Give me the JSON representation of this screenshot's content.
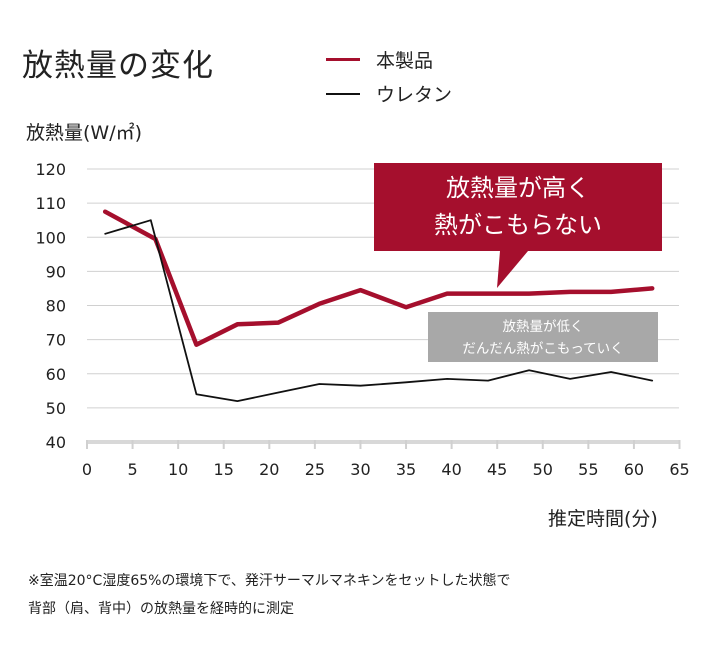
{
  "title": "放熱量の変化",
  "legend": [
    {
      "label": "本製品",
      "color": "#a50f2d"
    },
    {
      "label": "ウレタン",
      "color": "#111111"
    }
  ],
  "callouts": {
    "product": {
      "line1": "放熱量が高く",
      "line2": "熱がこもらない",
      "color": "#a50f2d"
    },
    "urethane": {
      "line1": "放熱量が低く",
      "line2": "だんだん熱がこもっていく",
      "color": "#a8a8a8"
    }
  },
  "notes": {
    "line1": "※室温20°C湿度65%の環境下で、発汗サーマルマネキンをセットした状態で",
    "line2": "背部（肩、背中）の放熱量を経時的に測定"
  },
  "chart_data": {
    "type": "line",
    "title": "放熱量の変化",
    "xlabel": "推定時間(分)",
    "ylabel": "放熱量(W/㎡)",
    "xlim": [
      0,
      65
    ],
    "ylim": [
      40,
      120
    ],
    "xticks": [
      0,
      5,
      10,
      15,
      20,
      25,
      30,
      35,
      40,
      45,
      50,
      55,
      60,
      65
    ],
    "yticks": [
      40,
      50,
      60,
      70,
      80,
      90,
      100,
      110,
      120
    ],
    "grid": "horizontal",
    "legend_position": "top-right",
    "series": [
      {
        "name": "本製品",
        "color": "#a50f2d",
        "x": [
          2,
          7.5,
          12,
          16.5,
          21,
          25.5,
          30,
          35,
          39.5,
          44,
          48.5,
          53,
          57.5,
          62
        ],
        "y": [
          107.5,
          99.5,
          68.5,
          74.5,
          75,
          80.5,
          84.5,
          79.5,
          83.5,
          83.5,
          83.5,
          84,
          84,
          85
        ]
      },
      {
        "name": "ウレタン",
        "color": "#111111",
        "x": [
          2,
          7,
          12,
          16.5,
          21,
          25.5,
          30,
          35,
          39.5,
          44,
          48.5,
          53,
          57.5,
          62
        ],
        "y": [
          101,
          105,
          54,
          52,
          54.5,
          57,
          56.5,
          57.5,
          58.5,
          58,
          61,
          58.5,
          60.5,
          58
        ]
      }
    ]
  }
}
